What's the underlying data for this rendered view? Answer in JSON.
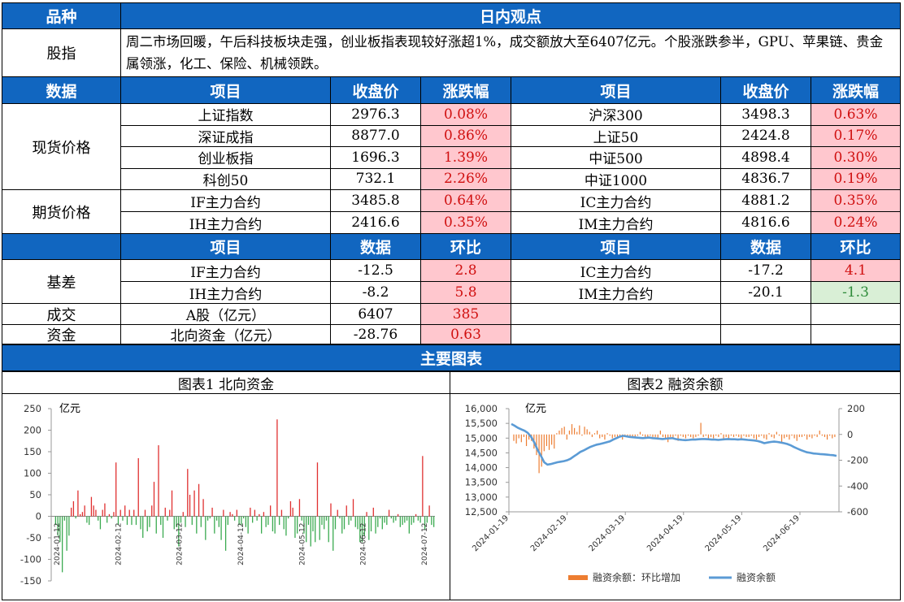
{
  "header": {
    "col1": "品种",
    "col2": "日内观点"
  },
  "stock_index": {
    "label": "股指",
    "text": "周二市场回暖，午后科技板块走强，创业板指表现较好涨超1%，成交额放大至6407亿元。个股涨跌参半，GPU、苹果链、贵金属领涨，化工、保险、机械领跌。"
  },
  "price_header": {
    "data": "数据",
    "item": "项目",
    "close": "收盘价",
    "chg": "涨跌幅",
    "item2": "项目",
    "close2": "收盘价",
    "chg2": "涨跌幅"
  },
  "spot": {
    "label": "现货价格",
    "rows": [
      {
        "name": "上证指数",
        "close": "2976.3",
        "chg": "0.08%",
        "name2": "沪深300",
        "close2": "3498.3",
        "chg2": "0.63%"
      },
      {
        "name": "深证成指",
        "close": "8877.0",
        "chg": "0.86%",
        "name2": "上证50",
        "close2": "2424.8",
        "chg2": "0.17%"
      },
      {
        "name": "创业板指",
        "close": "1696.3",
        "chg": "1.39%",
        "name2": "中证500",
        "close2": "4898.4",
        "chg2": "0.30%"
      },
      {
        "name": "科创50",
        "close": "732.1",
        "chg": "2.26%",
        "name2": "中证1000",
        "close2": "4836.7",
        "chg2": "0.19%"
      }
    ]
  },
  "futures": {
    "label": "期货价格",
    "rows": [
      {
        "name": "IF主力合约",
        "close": "3485.8",
        "chg": "0.64%",
        "name2": "IC主力合约",
        "close2": "4881.2",
        "chg2": "0.35%"
      },
      {
        "name": "IH主力合约",
        "close": "2416.6",
        "chg": "0.35%",
        "name2": "IM主力合约",
        "close2": "4816.6",
        "chg2": "0.24%"
      }
    ]
  },
  "data_header": {
    "item": "项目",
    "value": "数据",
    "chg": "环比",
    "item2": "项目",
    "value2": "数据",
    "chg2": "环比"
  },
  "basis": {
    "label": "基差",
    "rows": [
      {
        "name": "IF主力合约",
        "value": "-12.5",
        "chg": "2.8",
        "name2": "IC主力合约",
        "value2": "-17.2",
        "chg2": "4.1"
      },
      {
        "name": "IH主力合约",
        "value": "-8.2",
        "chg": "5.8",
        "name2": "IM主力合约",
        "value2": "-20.1",
        "chg2": "-1.3"
      }
    ]
  },
  "volume": {
    "label": "成交",
    "name": "A股（亿元）",
    "value": "6407",
    "chg": "385"
  },
  "capital": {
    "label": "资金",
    "name": "北向资金（亿元）",
    "value": "-28.76",
    "chg": "0.63"
  },
  "charts_header": "主要图表",
  "chart_data": [
    {
      "type": "bar",
      "title": "图表1  北向资金",
      "ylabel": "亿元",
      "ylim": [
        -150,
        250
      ],
      "yticks": [
        250,
        200,
        150,
        100,
        50,
        0,
        -50,
        -100,
        -150
      ],
      "x_ticks": [
        "2024-01-12",
        "2024-02-12",
        "2024-03-12",
        "2024-04-12",
        "2024-05-12",
        "2024-06-12",
        "2024-07-12"
      ],
      "values": [
        -20,
        -45,
        -60,
        -130,
        -10,
        -80,
        -45,
        20,
        35,
        -5,
        60,
        5,
        10,
        25,
        -15,
        -20,
        45,
        25,
        15,
        -10,
        -30,
        15,
        30,
        -15,
        5,
        -5,
        10,
        125,
        -20,
        15,
        -10,
        25,
        -20,
        15,
        -20,
        15,
        -20,
        135,
        -30,
        -50,
        15,
        -35,
        -25,
        25,
        80,
        -40,
        165,
        -20,
        -50,
        20,
        -10,
        15,
        60,
        -30,
        -25,
        -70,
        -15,
        10,
        -25,
        110,
        50,
        -20,
        60,
        -40,
        75,
        -25,
        40,
        -55,
        -10,
        -5,
        20,
        -40,
        -10,
        -25,
        -55,
        15,
        -80,
        -20,
        10,
        5,
        -10,
        15,
        -20,
        -20,
        -5,
        -25,
        -40,
        20,
        -15,
        15,
        -10,
        5,
        -40,
        10,
        -25,
        -20,
        25,
        -35,
        -40,
        225,
        -20,
        15,
        -30,
        -45,
        -5,
        35,
        20,
        -50,
        -40,
        40,
        -10,
        -40,
        -60,
        -20,
        -70,
        -35,
        -60,
        125,
        -55,
        -20,
        -30,
        -10,
        -60,
        30,
        -80,
        -30,
        15,
        -5,
        -40,
        -30,
        25,
        -20,
        -10,
        40,
        -25,
        -30,
        -60,
        -60,
        -45,
        10,
        -55,
        -35,
        20,
        -40,
        -25,
        -5,
        -30,
        -15,
        -20,
        15,
        -5,
        -15,
        -10,
        5,
        -25,
        -20,
        -15,
        -10,
        -40,
        -20,
        -15,
        5,
        -10,
        -15,
        140,
        -30,
        -15,
        25,
        -20,
        -25
      ]
    },
    {
      "type": "bar+line",
      "title": "图表2  融资余额",
      "ylabel": "亿元",
      "ylim_left": [
        12500,
        16000
      ],
      "ylim_right": [
        -600,
        200
      ],
      "yticks_left": [
        "16,000",
        "15,500",
        "15,000",
        "14,500",
        "14,000",
        "13,500",
        "13,000",
        "12,500"
      ],
      "yticks_right": [
        "200",
        "0",
        "-200",
        "-400",
        "-600"
      ],
      "x_ticks": [
        "2024-01-19",
        "2024-02-19",
        "2024-03-19",
        "2024-04-19",
        "2024-05-19",
        "2024-06-19"
      ],
      "series": [
        {
          "name": "融资余额：环比增加",
          "color": "#ed7d31",
          "values": [
            -50,
            -70,
            -30,
            -60,
            -20,
            -90,
            -40,
            -50,
            -110,
            -160,
            -300,
            -250,
            -130,
            -90,
            -120,
            -80,
            -110,
            10,
            30,
            50,
            60,
            -40,
            30,
            80,
            50,
            20,
            70,
            -10,
            60,
            40,
            20,
            -20,
            10,
            30,
            -30,
            -20,
            -40,
            10,
            -10,
            -30,
            -20,
            -30,
            -10,
            -40,
            -20,
            -10,
            -20,
            -20,
            -30,
            -10,
            20,
            -10,
            -20,
            -30,
            -10,
            -20,
            -20,
            -40,
            30,
            -20,
            -30,
            -60,
            -20,
            -30,
            -10,
            -50,
            -10,
            -20,
            -30,
            -10,
            -20,
            -30,
            -20,
            -10,
            90,
            -20,
            -10,
            -30,
            -20,
            -30,
            -10,
            -20,
            10,
            -40,
            -20,
            -30,
            -10,
            -20,
            -10,
            -20,
            -30,
            -10,
            -20,
            -20,
            -10,
            -30,
            -40,
            -20,
            -10,
            -30,
            -40,
            10,
            -20,
            -30,
            20,
            -10,
            -60,
            -30,
            -20,
            -40,
            -10,
            -30,
            -50,
            -20,
            -20,
            -10,
            -40,
            -20,
            -30,
            -10,
            -20,
            30,
            -10,
            -20,
            -40,
            -10,
            -30,
            -20
          ]
        },
        {
          "name": "融资余额",
          "color": "#5b9bd5",
          "values": [
            15480,
            15420,
            15350,
            15300,
            15250,
            15180,
            15050,
            14850,
            14600,
            14400,
            14180,
            14100,
            14120,
            14150,
            14180,
            14200,
            14220,
            14250,
            14300,
            14380,
            14450,
            14530,
            14580,
            14640,
            14700,
            14740,
            14780,
            14800,
            14830,
            14860,
            14890,
            14950,
            15000,
            15050,
            15080,
            15060,
            15040,
            15030,
            15020,
            15010,
            15000,
            15010,
            15020,
            15000,
            14990,
            14980,
            14970,
            14980,
            14990,
            15000,
            14970,
            14950,
            14940,
            14930,
            14940,
            14950,
            14950,
            14960,
            14970,
            14970,
            14960,
            14950,
            14950,
            14940,
            14950,
            14960,
            14970,
            14960,
            14960,
            14950,
            14960,
            14950,
            14940,
            14930,
            14920,
            14900,
            14870,
            14830,
            14850,
            14870,
            14880,
            14870,
            14850,
            14830,
            14800,
            14760,
            14700,
            14650,
            14600,
            14560,
            14520,
            14500,
            14480,
            14470,
            14460,
            14450,
            14440,
            14430,
            14420,
            14400
          ]
        }
      ]
    }
  ]
}
